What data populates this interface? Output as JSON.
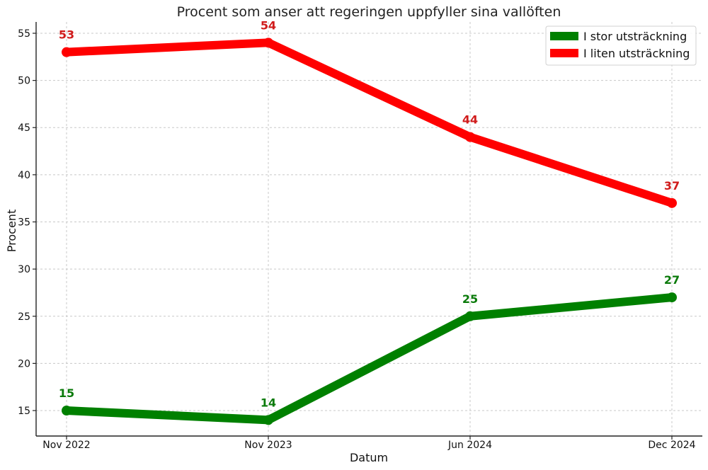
{
  "chart_data": {
    "type": "line",
    "title": "Procent som anser att regeringen uppfyller sina vallöften",
    "xlabel": "Datum",
    "ylabel": "Procent",
    "categories": [
      "Nov 2022",
      "Nov 2023",
      "Jun 2024",
      "Dec 2024"
    ],
    "ylim": [
      12.3,
      56.2
    ],
    "yticks": [
      15,
      20,
      25,
      30,
      35,
      40,
      45,
      50,
      55
    ],
    "grid": true,
    "legend_position": "top-right",
    "series": [
      {
        "name": "I stor utsträckning",
        "color": "#008000",
        "values": [
          15,
          14,
          25,
          27
        ],
        "labels": [
          "15",
          "14",
          "25",
          "27"
        ]
      },
      {
        "name": "I liten utsträckning",
        "color": "#ff0000",
        "values": [
          53,
          54,
          44,
          37
        ],
        "labels": [
          "53",
          "54",
          "44",
          "37"
        ]
      }
    ],
    "label_colors": [
      "#0a7a0a",
      "#d01b1b"
    ]
  }
}
